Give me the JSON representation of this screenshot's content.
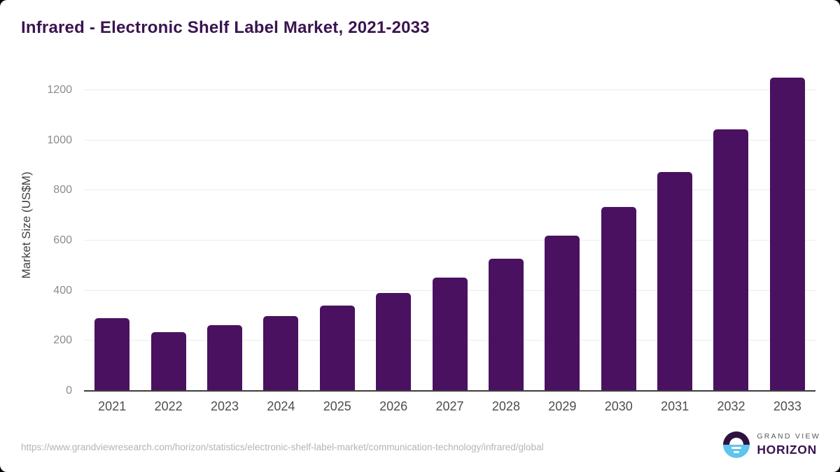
{
  "chart_data": {
    "type": "bar",
    "title": "Infrared - Electronic Shelf Label Market, 2021-2033",
    "xlabel": "",
    "ylabel": "Market Size (US$M)",
    "categories": [
      "2021",
      "2022",
      "2023",
      "2024",
      "2025",
      "2026",
      "2027",
      "2028",
      "2029",
      "2030",
      "2031",
      "2032",
      "2033"
    ],
    "values": [
      290,
      235,
      263,
      298,
      340,
      391,
      452,
      527,
      620,
      735,
      873,
      1043,
      1249
    ],
    "ylim": [
      0,
      1250
    ],
    "yticks": [
      0,
      200,
      400,
      600,
      800,
      1000,
      1200
    ],
    "grid": true,
    "legend_position": "none",
    "bar_color": "#4a1160",
    "title_color": "#3a1450"
  },
  "footer": {
    "source_url": "https://www.grandviewresearch.com/horizon/statistics/electronic-shelf-label-market/communication-technology/infrared/global",
    "logo_top_text": "GRAND VIEW",
    "logo_bottom_text": "HORIZON",
    "logo_dark_color": "#2d1240",
    "logo_blue_color": "#5fc4ee"
  }
}
